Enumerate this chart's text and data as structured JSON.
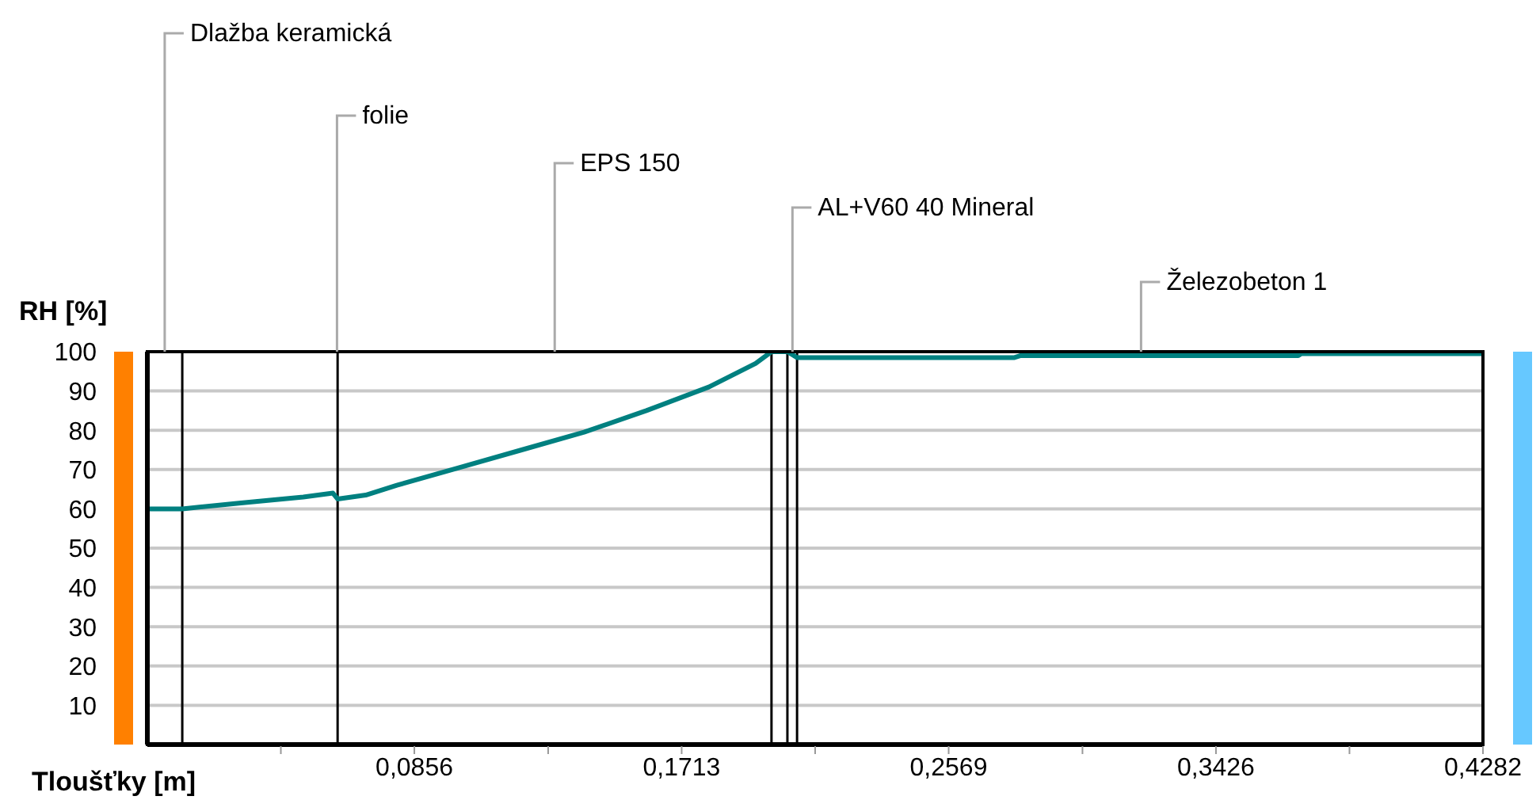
{
  "chart_data": {
    "type": "line",
    "xlabel": "Tloušťky [m]",
    "ylabel": "RH [%]",
    "x": [
      0,
      0.0112,
      0.03,
      0.05,
      0.0595,
      0.061,
      0.07,
      0.08,
      0.1,
      0.12,
      0.14,
      0.16,
      0.18,
      0.195,
      0.2001,
      0.2052,
      0.2083,
      0.278,
      0.28,
      0.369,
      0.37,
      0.4282
    ],
    "series": [
      {
        "color": "#008080",
        "values": [
          60,
          60,
          61.5,
          63,
          64,
          62.5,
          63.5,
          66,
          70.5,
          75,
          79.5,
          85,
          91,
          97,
          100,
          100,
          98.5,
          98.5,
          99,
          99,
          99.5,
          99.5
        ]
      }
    ],
    "xlim": [
      0,
      0.4282
    ],
    "xticks": [
      {
        "value": 0.0428,
        "label": null
      },
      {
        "value": 0.0856,
        "label": "0,0856"
      },
      {
        "value": 0.1285,
        "label": null
      },
      {
        "value": 0.1713,
        "label": "0,1713"
      },
      {
        "value": 0.2141,
        "label": null
      },
      {
        "value": 0.2569,
        "label": "0,2569"
      },
      {
        "value": 0.2998,
        "label": null
      },
      {
        "value": 0.3426,
        "label": "0,3426"
      },
      {
        "value": 0.3854,
        "label": null
      },
      {
        "value": 0.4282,
        "label": "0,4282"
      }
    ],
    "ylim": [
      0,
      100
    ],
    "yticks": [
      10,
      20,
      30,
      40,
      50,
      60,
      70,
      80,
      90,
      100
    ],
    "grid": "y",
    "marker": "none",
    "line_style": "solid",
    "legend": false,
    "ref_lines": [
      {
        "axis": "x",
        "value": 0.0112,
        "color": "#000000"
      },
      {
        "axis": "x",
        "value": 0.061,
        "color": "#000000"
      },
      {
        "axis": "x",
        "value": 0.2001,
        "color": "#000000"
      },
      {
        "axis": "x",
        "value": 0.2052,
        "color": "#000000"
      },
      {
        "axis": "x",
        "value": 0.2083,
        "color": "#000000"
      }
    ],
    "annotations": [
      "Dlažba keramická",
      "folie",
      "EPS 150",
      "AL+V60 40 Mineral",
      "Železobeton 1"
    ]
  }
}
